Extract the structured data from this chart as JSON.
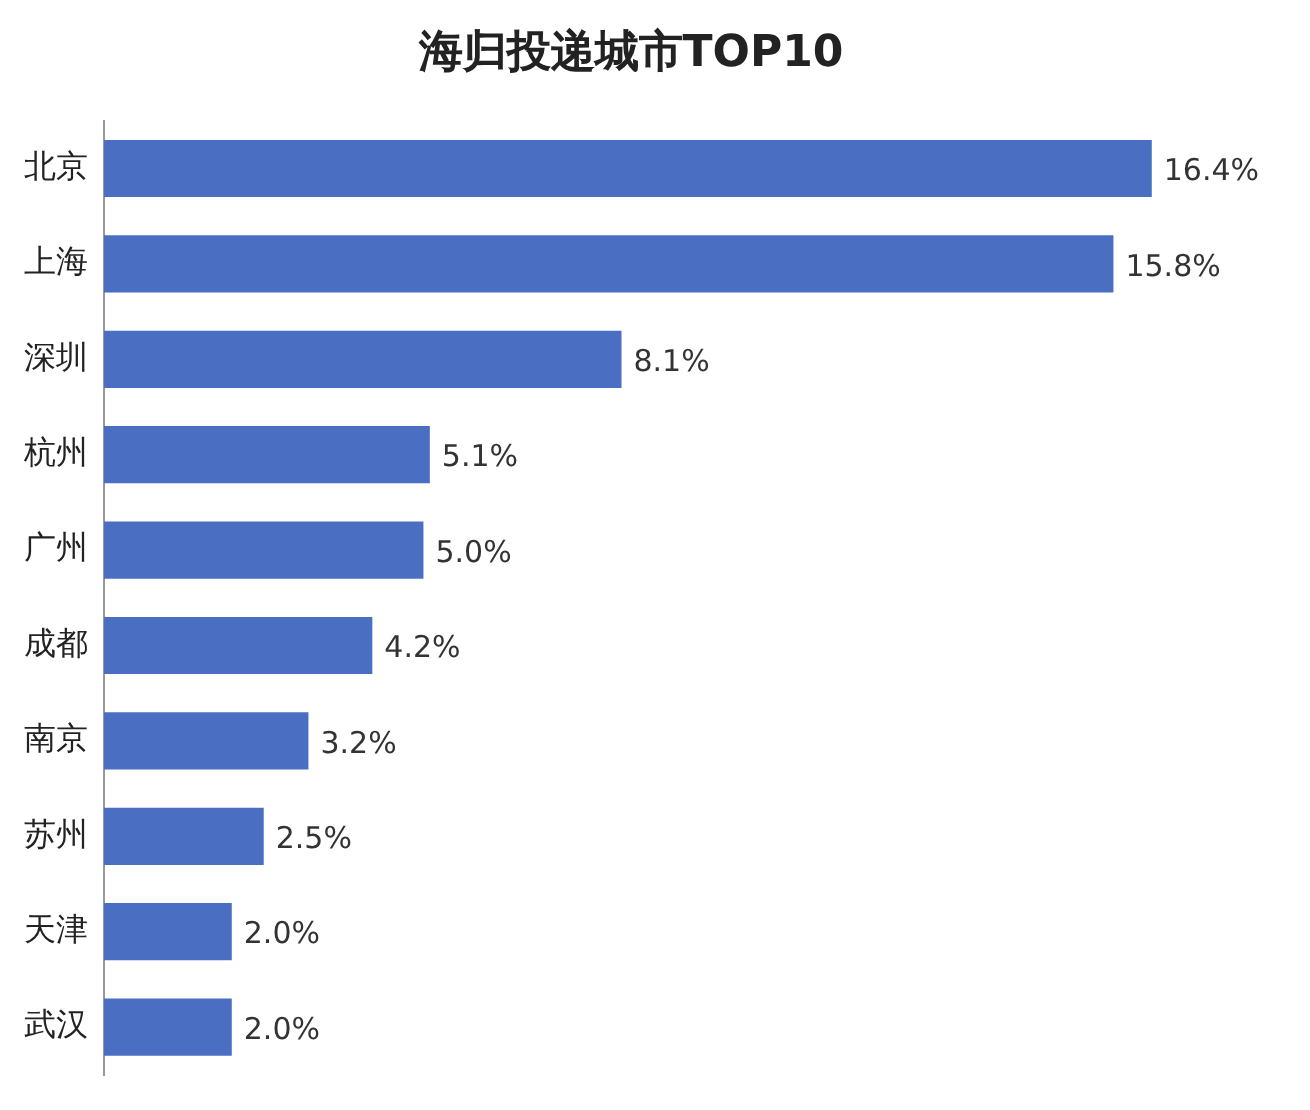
{
  "chart_data": {
    "type": "bar",
    "orientation": "horizontal",
    "title": "海归投递城市TOP10",
    "categories": [
      "北京",
      "上海",
      "深圳",
      "杭州",
      "广州",
      "成都",
      "南京",
      "苏州",
      "天津",
      "武汉"
    ],
    "values": [
      16.4,
      15.8,
      8.1,
      5.1,
      5.0,
      4.2,
      3.2,
      2.5,
      2.0,
      2.0
    ],
    "value_labels": [
      "16.4%",
      "15.8%",
      "8.1%",
      "5.1%",
      "5.0%",
      "4.2%",
      "3.2%",
      "2.5%",
      "2.0%",
      "2.0%"
    ],
    "color": "#4a6fc2",
    "grid": false,
    "legend": false,
    "tick_labels": "y"
  }
}
